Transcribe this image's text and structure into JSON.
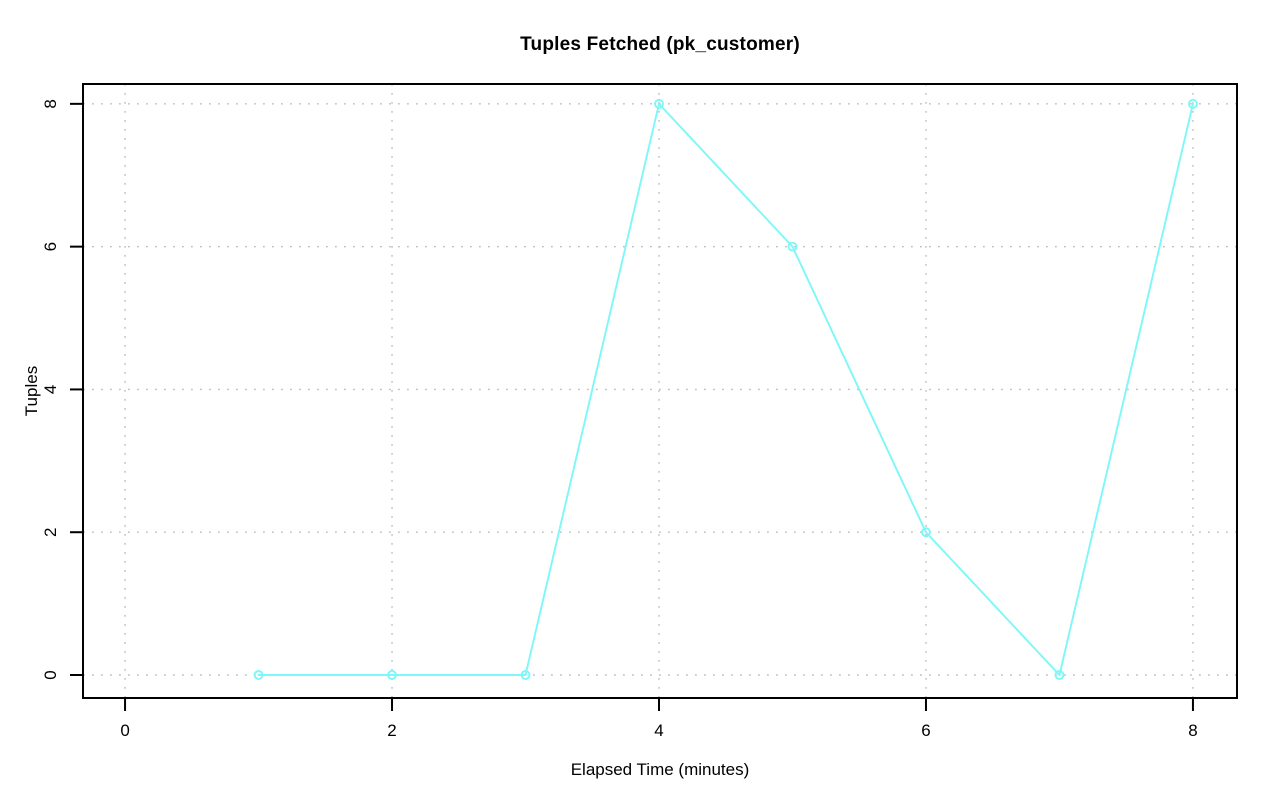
{
  "chart_data": {
    "type": "line",
    "title": "Tuples Fetched (pk_customer)",
    "xlabel": "Elapsed Time (minutes)",
    "ylabel": "Tuples",
    "x": [
      1,
      2,
      3,
      4,
      5,
      6,
      7,
      8
    ],
    "series": [
      {
        "name": "pk_customer",
        "values": [
          0,
          0,
          0,
          8,
          6,
          2,
          0,
          8
        ]
      }
    ],
    "xticks": [
      0,
      2,
      4,
      6,
      8
    ],
    "yticks": [
      0,
      2,
      4,
      6,
      8
    ],
    "xlim": [
      -0.315,
      8.33
    ],
    "ylim": [
      -0.322,
      8.278
    ],
    "grid": true,
    "legend": "none",
    "marker": "open-circle",
    "colors": {
      "line": "#7DF7F7",
      "grid": "#BEBEBE",
      "axis": "#000000",
      "background": "#FFFFFF",
      "text": "#000000"
    }
  }
}
